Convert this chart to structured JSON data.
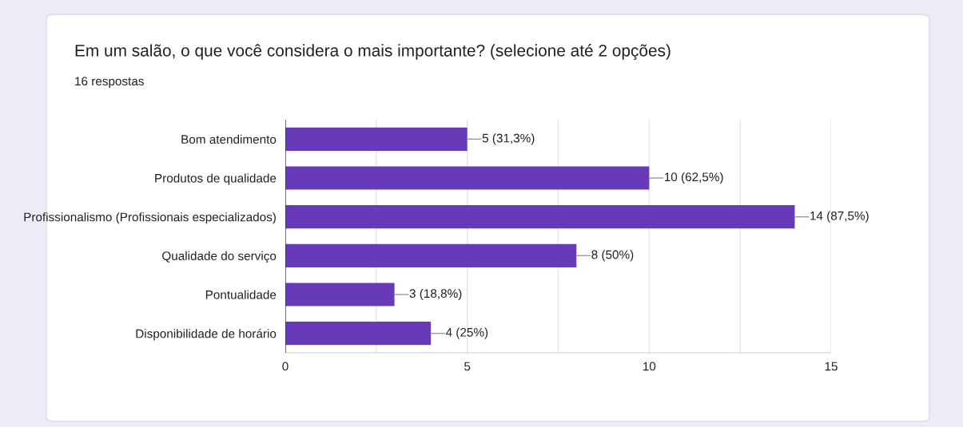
{
  "chart_data": {
    "type": "bar",
    "orientation": "horizontal",
    "title": "Em um salão, o que você considera o mais importante? (selecione até 2 opções)",
    "subtitle": "16 respostas",
    "categories": [
      "Bom atendimento",
      "Produtos de qualidade",
      "Profissionalismo (Profissionais especializados)",
      "Qualidade do serviço",
      "Pontualidade",
      "Disponibilidade de horário"
    ],
    "values": [
      5,
      10,
      14,
      8,
      3,
      4
    ],
    "color": "#673ab7",
    "value_labels": [
      "5 (31,3%)",
      "10 (62,5%)",
      "14 (87,5%)",
      "8 (50%)",
      "3 (18,8%)",
      "4 (25%)"
    ],
    "xlim": [
      0,
      15
    ],
    "xticks": [
      0,
      {
        "value": 2.5,
        "label": null
      },
      5,
      {
        "value": 7.5,
        "label": null
      },
      10,
      {
        "value": 12.5,
        "label": null
      },
      15
    ],
    "grid": "x",
    "legend": false
  }
}
